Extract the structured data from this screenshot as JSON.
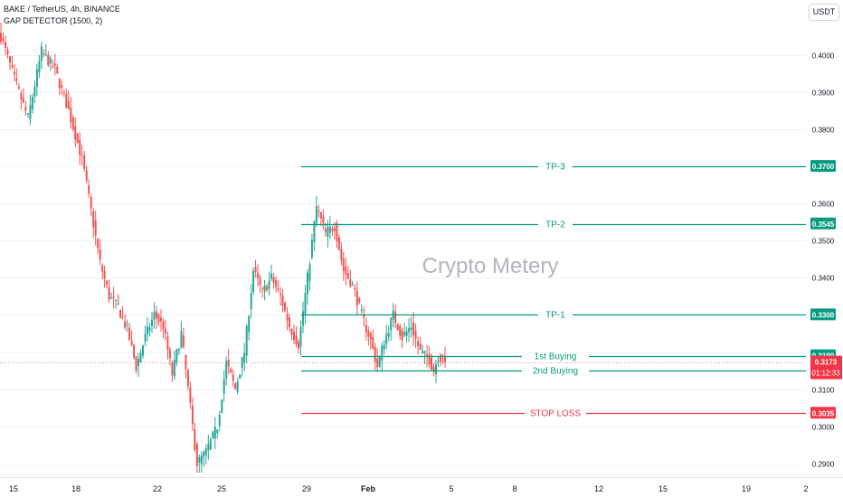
{
  "header": {
    "symbol_line": "BAKE / TetherUS, 4h, BINANCE",
    "indicator_line": "GAP DETECTOR (1500, 2)"
  },
  "currency_button": "USDT",
  "watermark": "Crypto Metery",
  "colors": {
    "up": "#26a69a",
    "down": "#ef5350",
    "level_green": "#089981",
    "level_red": "#f23645",
    "current_price": "#f23645",
    "axis_text": "#131722",
    "watermark": "#b2b5be"
  },
  "chart_data": {
    "type": "candlestick",
    "title": "BAKE / TetherUS, 4h, BINANCE",
    "x_tick_labels": [
      "15",
      "18",
      "22",
      "25",
      "29",
      "Feb",
      "5",
      "8",
      "12",
      "15",
      "19",
      "2"
    ],
    "y_tick_labels": [
      "0.4000",
      "0.3900",
      "0.3800",
      "0.3700",
      "0.3600",
      "0.3500",
      "0.3400",
      "0.3300",
      "0.3200",
      "0.3100",
      "0.3000",
      "0.2900"
    ],
    "ylim": [
      0.2863,
      0.4148
    ],
    "levels": [
      {
        "label": "TP-3",
        "price": 0.37,
        "price_label": "0.3700",
        "kind": "take-profit"
      },
      {
        "label": "TP-2",
        "price": 0.3545,
        "price_label": "0.3545",
        "kind": "take-profit"
      },
      {
        "label": "TP-1",
        "price": 0.33,
        "price_label": "0.3300",
        "kind": "take-profit"
      },
      {
        "label": "1st Buying",
        "price": 0.319,
        "price_label": "0.3190",
        "kind": "entry"
      },
      {
        "label": "2nd Buying",
        "price": 0.315,
        "price_label": "0.3150",
        "kind": "entry"
      },
      {
        "label": "STOP LOSS",
        "price": 0.3035,
        "price_label": "0.3035",
        "kind": "stop"
      }
    ],
    "current_price": {
      "price": 0.3173,
      "price_label": "0.3173",
      "countdown": "01:12:33"
    },
    "anchors": [
      [
        0,
        0.405
      ],
      [
        6,
        0.3935
      ],
      [
        12,
        0.383
      ],
      [
        18,
        0.401
      ],
      [
        24,
        0.396
      ],
      [
        30,
        0.385
      ],
      [
        36,
        0.372
      ],
      [
        40,
        0.358
      ],
      [
        44,
        0.344
      ],
      [
        48,
        0.335
      ],
      [
        52,
        0.332
      ],
      [
        56,
        0.326
      ],
      [
        60,
        0.316
      ],
      [
        64,
        0.324
      ],
      [
        68,
        0.33
      ],
      [
        72,
        0.327
      ],
      [
        76,
        0.314
      ],
      [
        80,
        0.325
      ],
      [
        84,
        0.305
      ],
      [
        87,
        0.29
      ],
      [
        91,
        0.293
      ],
      [
        96,
        0.3
      ],
      [
        100,
        0.317
      ],
      [
        104,
        0.31
      ],
      [
        108,
        0.32
      ],
      [
        112,
        0.342
      ],
      [
        116,
        0.336
      ],
      [
        120,
        0.34
      ],
      [
        124,
        0.335
      ],
      [
        128,
        0.327
      ],
      [
        132,
        0.322
      ],
      [
        136,
        0.34
      ],
      [
        140,
        0.359
      ],
      [
        144,
        0.352
      ],
      [
        148,
        0.354
      ],
      [
        152,
        0.342
      ],
      [
        156,
        0.338
      ],
      [
        160,
        0.33
      ],
      [
        164,
        0.323
      ],
      [
        167,
        0.316
      ],
      [
        170,
        0.323
      ],
      [
        174,
        0.33
      ],
      [
        178,
        0.324
      ],
      [
        182,
        0.327
      ],
      [
        186,
        0.32
      ],
      [
        190,
        0.318
      ],
      [
        192,
        0.315
      ],
      [
        194,
        0.319
      ],
      [
        197,
        0.3173
      ]
    ]
  }
}
